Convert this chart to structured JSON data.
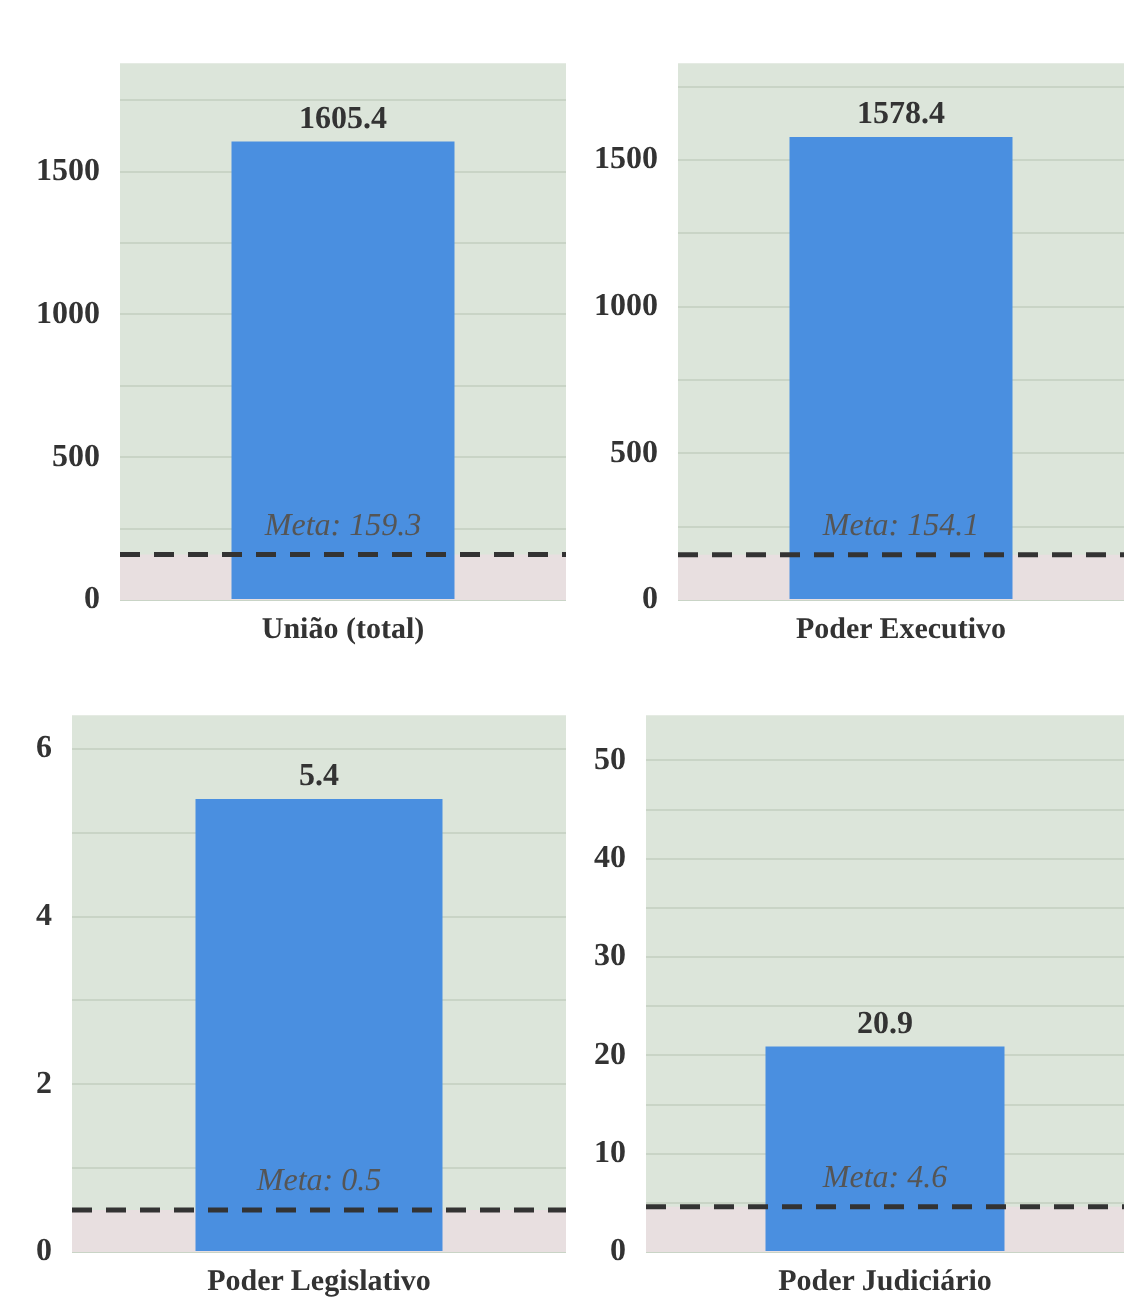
{
  "chart_data": [
    {
      "type": "bar",
      "categories": [
        "União (total)"
      ],
      "values": [
        1605.4
      ],
      "color": "#4a8fe0",
      "data_labels": true,
      "ylim": [
        0,
        1880
      ],
      "yticks": [
        0,
        {
          "value": 250,
          "label": null
        },
        500,
        {
          "value": 750,
          "label": null
        },
        1000,
        {
          "value": 1250,
          "label": null
        },
        1500,
        {
          "value": 1750,
          "label": null
        }
      ],
      "grid": "y",
      "ref_lines": [
        {
          "axis": "y",
          "value": 159.3,
          "label": "Meta: 159.3",
          "color": "#333333",
          "line_style": "dashed"
        }
      ],
      "bands": [
        {
          "axis": "y",
          "from": 0,
          "to": 159.3,
          "color": "#e8dfe0"
        }
      ]
    },
    {
      "type": "bar",
      "categories": [
        "Poder Executivo"
      ],
      "values": [
        1578.4
      ],
      "color": "#4a8fe0",
      "data_labels": true,
      "ylim": [
        0,
        1830
      ],
      "yticks": [
        0,
        {
          "value": 250,
          "label": null
        },
        500,
        {
          "value": 750,
          "label": null
        },
        1000,
        {
          "value": 1250,
          "label": null
        },
        1500,
        {
          "value": 1750,
          "label": null
        }
      ],
      "grid": "y",
      "ref_lines": [
        {
          "axis": "y",
          "value": 154.1,
          "label": "Meta: 154.1",
          "color": "#333333",
          "line_style": "dashed"
        }
      ],
      "bands": [
        {
          "axis": "y",
          "from": 0,
          "to": 154.1,
          "color": "#e8dfe0"
        }
      ]
    },
    {
      "type": "bar",
      "categories": [
        "Poder Legislativo"
      ],
      "values": [
        5.4
      ],
      "color": "#4a8fe0",
      "data_labels": true,
      "ylim": [
        0,
        6.4
      ],
      "yticks": [
        0,
        {
          "value": 1,
          "label": null
        },
        2,
        {
          "value": 3,
          "label": null
        },
        4,
        {
          "value": 5,
          "label": null
        },
        6
      ],
      "grid": "y",
      "ref_lines": [
        {
          "axis": "y",
          "value": 0.5,
          "label": "Meta: 0.5",
          "color": "#333333",
          "line_style": "dashed"
        }
      ],
      "bands": [
        {
          "axis": "y",
          "from": 0,
          "to": 0.5,
          "color": "#e8dfe0"
        }
      ]
    },
    {
      "type": "bar",
      "categories": [
        "Poder Judiciário"
      ],
      "values": [
        20.9
      ],
      "color": "#4a8fe0",
      "data_labels": true,
      "ylim": [
        0,
        54.6
      ],
      "yticks": [
        0,
        {
          "value": 5,
          "label": null
        },
        10,
        {
          "value": 15,
          "label": null
        },
        20,
        {
          "value": 25,
          "label": null
        },
        30,
        {
          "value": 35,
          "label": null
        },
        40,
        {
          "value": 45,
          "label": null
        },
        50
      ],
      "grid": "y",
      "ref_lines": [
        {
          "axis": "y",
          "value": 4.6,
          "label": "Meta: 4.6",
          "color": "#333333",
          "line_style": "dashed"
        }
      ],
      "bands": [
        {
          "axis": "y",
          "from": 0,
          "to": 4.6,
          "color": "#e8dfe0"
        }
      ]
    }
  ]
}
